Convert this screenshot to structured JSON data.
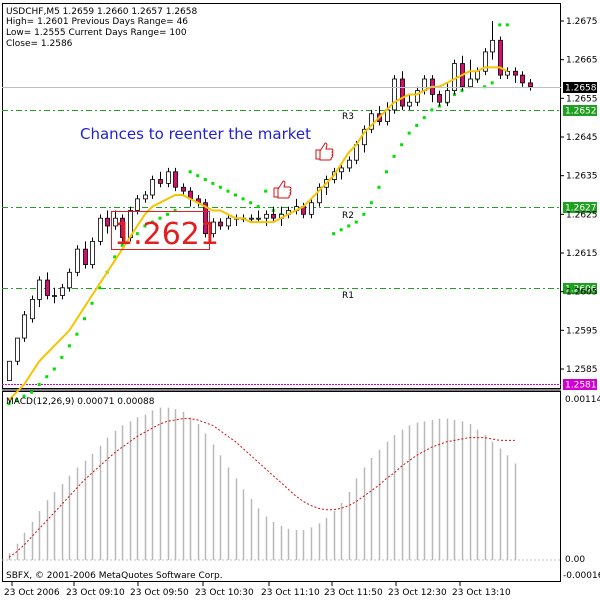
{
  "chart_data": [
    {
      "type": "candlestick",
      "info": {
        "line1": "USDCHF,M5  1.2659 1.2660 1.2657 1.2658",
        "line2": "High= 1.2601    Previous Days Range= 46",
        "line3": "Low= 1.2555    Current Days Range= 100",
        "line4": "Close= 1.2586"
      },
      "annotation": "Chances to reenter the market",
      "big_price_label": "1.2621",
      "ylim": [
        1.2574,
        1.2684
      ],
      "y_ticks": [
        "1.2675",
        "1.2665",
        "1.2655",
        "1.2645",
        "1.2635",
        "1.2625",
        "1.2615",
        "1.2605",
        "1.2595",
        "1.2585"
      ],
      "levels": [
        {
          "name": "R3",
          "value": 1.2652,
          "label": "1.2652",
          "tag": "R3"
        },
        {
          "name": "R2",
          "value": 1.2627,
          "label": "1.2627",
          "tag": "R2"
        },
        {
          "name": "R1",
          "value": 1.2606,
          "label": "1.2606",
          "tag": "R1"
        },
        {
          "name": "low",
          "value": 1.2581,
          "label": "1.2581",
          "tag": ""
        }
      ],
      "current_price": {
        "value": 1.2658,
        "label": "1.2658"
      },
      "candles": [
        [
          1.2582,
          1.2587,
          1.2577,
          1.2576
        ],
        [
          1.2587,
          1.2593,
          1.2593,
          1.2586
        ],
        [
          1.2593,
          1.2599,
          1.26,
          1.2592
        ],
        [
          1.2598,
          1.2603,
          1.2604,
          1.2597
        ],
        [
          1.2603,
          1.2608,
          1.2609,
          1.2601
        ],
        [
          1.2608,
          1.2604,
          1.261,
          1.2603
        ],
        [
          1.2604,
          1.2604,
          1.2606,
          1.2602
        ],
        [
          1.2604,
          1.2606,
          1.2607,
          1.2603
        ],
        [
          1.2606,
          1.261,
          1.2611,
          1.2605
        ],
        [
          1.261,
          1.2616,
          1.2617,
          1.2609
        ],
        [
          1.2616,
          1.2612,
          1.2618,
          1.2611
        ],
        [
          1.2612,
          1.2618,
          1.2619,
          1.2611
        ],
        [
          1.2618,
          1.2624,
          1.2625,
          1.2617
        ],
        [
          1.2624,
          1.2622,
          1.2626,
          1.262
        ],
        [
          1.2622,
          1.2624,
          1.2626,
          1.2621
        ],
        [
          1.2624,
          1.2619,
          1.2625,
          1.2618
        ],
        [
          1.2619,
          1.2626,
          1.2627,
          1.2618
        ],
        [
          1.2626,
          1.2629,
          1.263,
          1.2625
        ],
        [
          1.2629,
          1.263,
          1.2631,
          1.2628
        ],
        [
          1.263,
          1.2634,
          1.2635,
          1.2629
        ],
        [
          1.2634,
          1.2633,
          1.2636,
          1.2632
        ],
        [
          1.2633,
          1.2636,
          1.2637,
          1.2632
        ],
        [
          1.2636,
          1.2632,
          1.2637,
          1.2631
        ],
        [
          1.2632,
          1.2631,
          1.2633,
          1.263
        ],
        [
          1.2631,
          1.2629,
          1.2632,
          1.2627
        ],
        [
          1.2629,
          1.2628,
          1.263,
          1.2627
        ],
        [
          1.2628,
          1.262,
          1.2629,
          1.2619
        ],
        [
          1.262,
          1.2623,
          1.2624,
          1.2619
        ],
        [
          1.2623,
          1.2622,
          1.2624,
          1.2621
        ],
        [
          1.2622,
          1.2624,
          1.2625,
          1.2621
        ],
        [
          1.2624,
          1.2624,
          1.2625,
          1.2622
        ],
        [
          1.2624,
          1.2624,
          1.2625,
          1.2623
        ],
        [
          1.2624,
          1.2624,
          1.2625,
          1.2623
        ],
        [
          1.2624,
          1.2624,
          1.2626,
          1.2623
        ],
        [
          1.2624,
          1.2625,
          1.2626,
          1.2622
        ],
        [
          1.2625,
          1.2624,
          1.2627,
          1.2623
        ],
        [
          1.2624,
          1.2625,
          1.2627,
          1.2622
        ],
        [
          1.2625,
          1.2626,
          1.2627,
          1.2624
        ],
        [
          1.2626,
          1.2627,
          1.2629,
          1.2625
        ],
        [
          1.2627,
          1.2625,
          1.2628,
          1.2624
        ],
        [
          1.2625,
          1.2628,
          1.2629,
          1.2624
        ],
        [
          1.2628,
          1.2632,
          1.2633,
          1.2627
        ],
        [
          1.2632,
          1.2634,
          1.2635,
          1.263
        ],
        [
          1.2634,
          1.2636,
          1.2637,
          1.2633
        ],
        [
          1.2636,
          1.2637,
          1.2638,
          1.2634
        ],
        [
          1.2637,
          1.2639,
          1.264,
          1.2636
        ],
        [
          1.2639,
          1.2643,
          1.2644,
          1.2638
        ],
        [
          1.2643,
          1.2647,
          1.2648,
          1.2641
        ],
        [
          1.2647,
          1.2651,
          1.2652,
          1.2646
        ],
        [
          1.2651,
          1.2649,
          1.2653,
          1.2648
        ],
        [
          1.2649,
          1.2652,
          1.2654,
          1.2648
        ],
        [
          1.2652,
          1.266,
          1.2661,
          1.2651
        ],
        [
          1.266,
          1.2653,
          1.2662,
          1.2652
        ],
        [
          1.2653,
          1.2654,
          1.2656,
          1.2652
        ],
        [
          1.2654,
          1.2657,
          1.2658,
          1.2653
        ],
        [
          1.2657,
          1.266,
          1.2661,
          1.2656
        ],
        [
          1.266,
          1.2656,
          1.2661,
          1.2654
        ],
        [
          1.2656,
          1.2654,
          1.2657,
          1.2653
        ],
        [
          1.2654,
          1.2657,
          1.2659,
          1.2653
        ],
        [
          1.2657,
          1.2664,
          1.2665,
          1.2656
        ],
        [
          1.2664,
          1.2658,
          1.2666,
          1.2657
        ],
        [
          1.2658,
          1.266,
          1.2665,
          1.2659
        ],
        [
          1.266,
          1.2662,
          1.2663,
          1.2659
        ],
        [
          1.2662,
          1.2667,
          1.2668,
          1.2661
        ],
        [
          1.2667,
          1.267,
          1.2675,
          1.2665
        ],
        [
          1.267,
          1.2661,
          1.2671,
          1.266
        ],
        [
          1.2661,
          1.2662,
          1.2663,
          1.266
        ],
        [
          1.2662,
          1.2661,
          1.2663,
          1.2659
        ],
        [
          1.2661,
          1.2659,
          1.2662,
          1.2658
        ],
        [
          1.2659,
          1.2658,
          1.266,
          1.2657
        ]
      ],
      "ma": [
        1.2577,
        1.2579,
        1.2581,
        1.2584,
        1.2587,
        1.2589,
        1.2591,
        1.2593,
        1.2595,
        1.2598,
        1.2601,
        1.2604,
        1.2607,
        1.261,
        1.2613,
        1.2616,
        1.2619,
        1.2622,
        1.2625,
        1.2627,
        1.2628,
        1.2629,
        1.263,
        1.263,
        1.2629,
        1.2628,
        1.2627,
        1.2626,
        1.2626,
        1.2625,
        1.2624,
        1.2624,
        1.2623,
        1.2623,
        1.2623,
        1.2623,
        1.2624,
        1.2625,
        1.2626,
        1.2627,
        1.2629,
        1.2631,
        1.2633,
        1.2635,
        1.2638,
        1.2641,
        1.2643,
        1.2646,
        1.2648,
        1.265,
        1.2652,
        1.2654,
        1.2655,
        1.2656,
        1.2656,
        1.2657,
        1.2658,
        1.2658,
        1.2659,
        1.266,
        1.2661,
        1.2662,
        1.2662,
        1.2663,
        1.2663,
        1.2663,
        1.2662
      ],
      "sar_upper": [
        1.2636,
        1.2635,
        1.2634,
        1.2633,
        1.2632,
        1.2631,
        1.263,
        1.2629,
        1.2628,
        1.2627,
        1.2631,
        1.2626,
        1.2625,
        1.2674,
        1.2674
      ],
      "sar_lower": [
        1.2576,
        1.2577,
        1.2578,
        1.2579,
        1.2581,
        1.2583,
        1.2585,
        1.2588,
        1.2591,
        1.2594,
        1.2598,
        1.2602,
        1.2606,
        1.261,
        1.2614,
        1.2617,
        1.2619,
        1.262,
        1.2622,
        1.2623,
        1.2624,
        1.2625,
        1.2626,
        1.262,
        1.2621,
        1.2622,
        1.2623,
        1.2625,
        1.2628,
        1.2632,
        1.2636,
        1.264,
        1.2643,
        1.2646,
        1.2648,
        1.265,
        1.2652,
        1.2653,
        1.2654,
        1.2656,
        1.2657,
        1.2658,
        1.266,
        1.2658,
        1.2659
      ],
      "level_tags_shown": true
    },
    {
      "type": "bar",
      "title": "MACD(12,26,9) 0.00071 0.00088",
      "y_ticks": [
        "0.00114",
        "0.00",
        "-0.00016"
      ],
      "ylim": [
        -0.00016,
        0.00114
      ],
      "histogram": [
        5e-05,
        0.00012,
        0.0002,
        0.00028,
        0.00036,
        0.00044,
        0.0005,
        0.00056,
        0.00062,
        0.00068,
        0.00073,
        0.00078,
        0.00084,
        0.0009,
        0.00095,
        0.00099,
        0.00102,
        0.00105,
        0.00107,
        0.0011,
        0.00112,
        0.00112,
        0.00111,
        0.00109,
        0.00105,
        0.001,
        0.00093,
        0.00085,
        0.00077,
        0.00068,
        0.0006,
        0.00052,
        0.00045,
        0.00038,
        0.00032,
        0.00028,
        0.00025,
        0.00023,
        0.00022,
        0.00022,
        0.00024,
        0.00027,
        0.00031,
        0.00036,
        0.00042,
        0.0005,
        0.0006,
        0.00068,
        0.00075,
        0.00081,
        0.00087,
        0.00092,
        0.00096,
        0.00099,
        0.00101,
        0.00102,
        0.00103,
        0.00104,
        0.00104,
        0.00103,
        0.00102,
        0.001,
        0.00096,
        0.00092,
        0.00087,
        0.00082,
        0.00077,
        0.00071
      ],
      "signal": [
        2e-05,
        6e-05,
        0.00011,
        0.00017,
        0.00023,
        0.00029,
        0.00035,
        0.00041,
        0.00047,
        0.00053,
        0.00059,
        0.00064,
        0.00069,
        0.00074,
        0.00079,
        0.00083,
        0.00087,
        0.00091,
        0.00094,
        0.00097,
        0.001,
        0.00102,
        0.00103,
        0.00104,
        0.00104,
        0.00103,
        0.00101,
        0.00099,
        0.00095,
        0.00091,
        0.00087,
        0.00082,
        0.00077,
        0.00072,
        0.00067,
        0.00062,
        0.00057,
        0.00052,
        0.00047,
        0.00043,
        0.0004,
        0.00038,
        0.00037,
        0.00037,
        0.00038,
        0.0004,
        0.00043,
        0.00047,
        0.00051,
        0.00055,
        0.0006,
        0.00064,
        0.00069,
        0.00073,
        0.00077,
        0.0008,
        0.00083,
        0.00085,
        0.00087,
        0.00088,
        0.00089,
        0.0009,
        0.0009,
        0.0009,
        0.00089,
        0.00088,
        0.00088,
        0.00088
      ],
      "x_tick_labels": [
        "23 Oct 2006",
        "23 Oct 09:10",
        "23 Oct 09:50",
        "23 Oct 10:30",
        "23 Oct 11:10",
        "23 Oct 11:50",
        "23 Oct 12:30",
        "23 Oct 13:10"
      ],
      "copyright": "SBFX, © 2001-2006 MetaQuotes Software Corp."
    }
  ]
}
